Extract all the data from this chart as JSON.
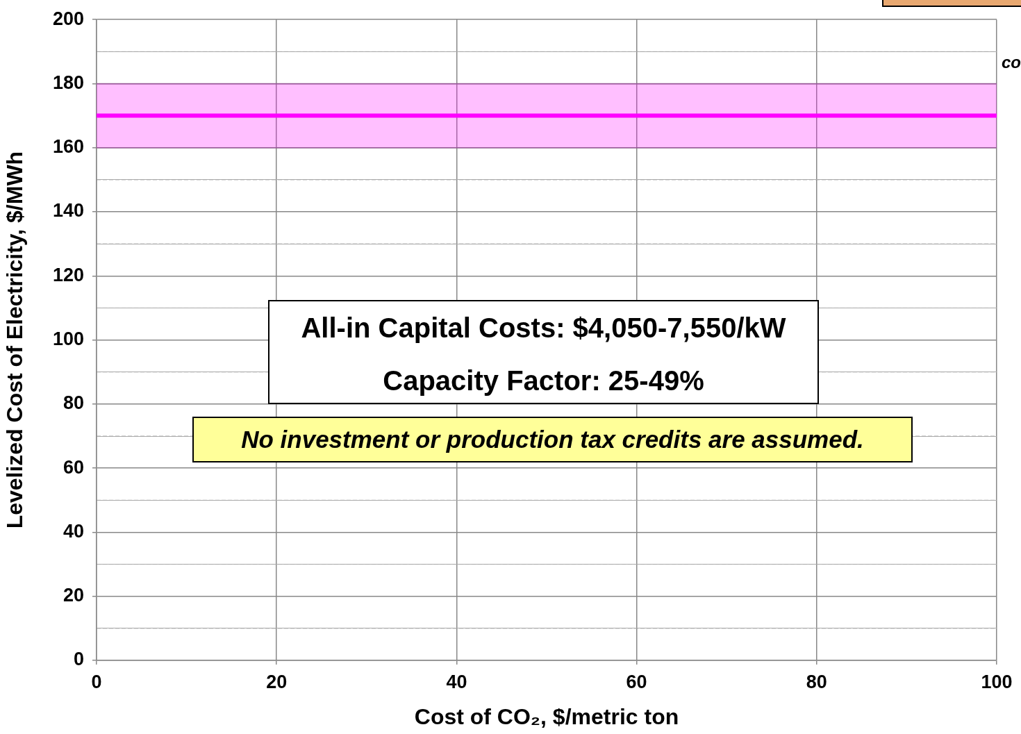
{
  "chart_data": {
    "type": "line",
    "xlabel": "Cost of CO₂, $/metric ton",
    "ylabel": "Levelized Cost of Electricity, $/MWh",
    "xlim": [
      0,
      100
    ],
    "xticks": [
      0,
      20,
      40,
      60,
      80,
      100
    ],
    "ylim": [
      0,
      200
    ],
    "yticks": [
      0,
      {
        "value": 10,
        "label": null
      },
      20,
      {
        "value": 30,
        "label": null
      },
      40,
      {
        "value": 50,
        "label": null
      },
      60,
      {
        "value": 70,
        "label": null
      },
      80,
      {
        "value": 90,
        "label": null
      },
      100,
      {
        "value": 110,
        "label": null
      },
      120,
      {
        "value": 130,
        "label": null
      },
      140,
      {
        "value": 150,
        "label": null
      },
      160,
      {
        "value": 170,
        "label": null
      },
      180,
      {
        "value": 190,
        "label": null
      },
      200
    ],
    "grid": true,
    "legend": false,
    "marker": "none",
    "line_style": "solid",
    "series": [
      {
        "color": "#ff00ff",
        "x": [
          0,
          100
        ],
        "values": [
          170,
          170
        ],
        "lower": [
          160,
          160
        ],
        "upper": [
          180,
          180
        ]
      }
    ],
    "annotations": [
      "All-in Capital Costs: $4,050-7,550/kW",
      "Capacity Factor: 25-49%",
      "No investment or production tax credits are assumed.",
      "co"
    ]
  }
}
